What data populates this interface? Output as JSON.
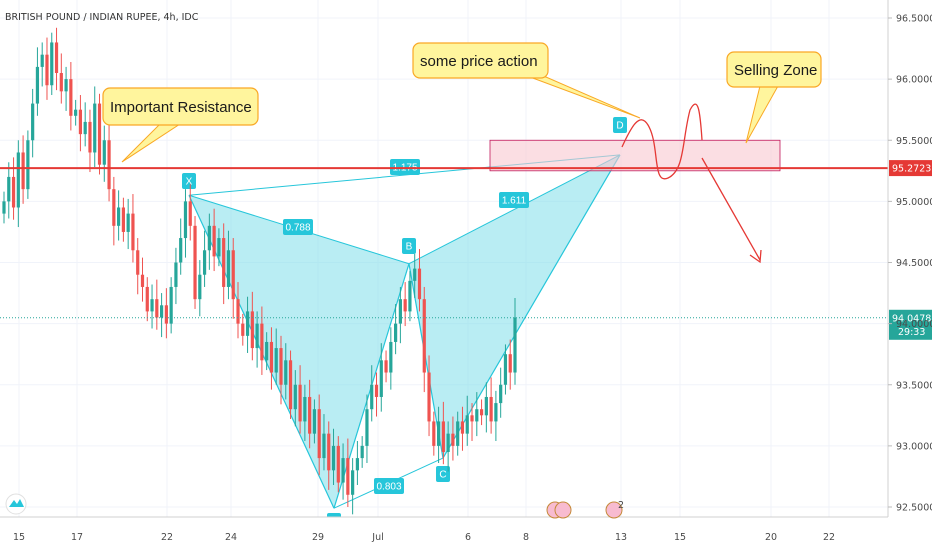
{
  "chart_data": {
    "type": "candlestick",
    "symbol": "BRITISH POUND / INDIAN RUPEE, 4h, IDC",
    "y_axis": {
      "ticks": [
        "96.5000",
        "96.0000",
        "95.5000",
        "95.0000",
        "94.5000",
        "94.0000",
        "93.5000",
        "93.0000",
        "92.5000"
      ],
      "ylim": [
        92.45,
        96.65
      ]
    },
    "x_axis": {
      "ticks": [
        "15",
        "17",
        "22",
        "24",
        "29",
        "Jul",
        "6",
        "8",
        "13",
        "15",
        "20",
        "22"
      ]
    },
    "resistance_line": {
      "price": 95.2723,
      "label": "95.2723",
      "color": "#e53935"
    },
    "current_price": {
      "price": 94.0478,
      "label": "94.0478",
      "countdown": "29:33",
      "color": "#26a69a"
    },
    "pattern": {
      "name": "XABCD",
      "points": [
        {
          "label": "X",
          "price": 95.05
        },
        {
          "label": "A",
          "price": 92.49
        },
        {
          "label": "B",
          "price": 94.49
        },
        {
          "label": "C",
          "price": 92.9
        },
        {
          "label": "D",
          "price": 95.38
        }
      ],
      "ratios": [
        "0.788",
        "1.175",
        "1.611",
        "0.803"
      ],
      "color": "#26c6da"
    },
    "selling_zone": {
      "from": 95.25,
      "to": 95.5
    },
    "annotations": [
      "Important Resistance",
      "some price action",
      "Selling Zone"
    ],
    "calendar_badge": "2",
    "colors": {
      "up": "#26a69a",
      "down": "#ef5350",
      "pattern_fill": "#80deea",
      "callout_bg": "#fff59d",
      "callout_border": "#f9a825"
    }
  }
}
